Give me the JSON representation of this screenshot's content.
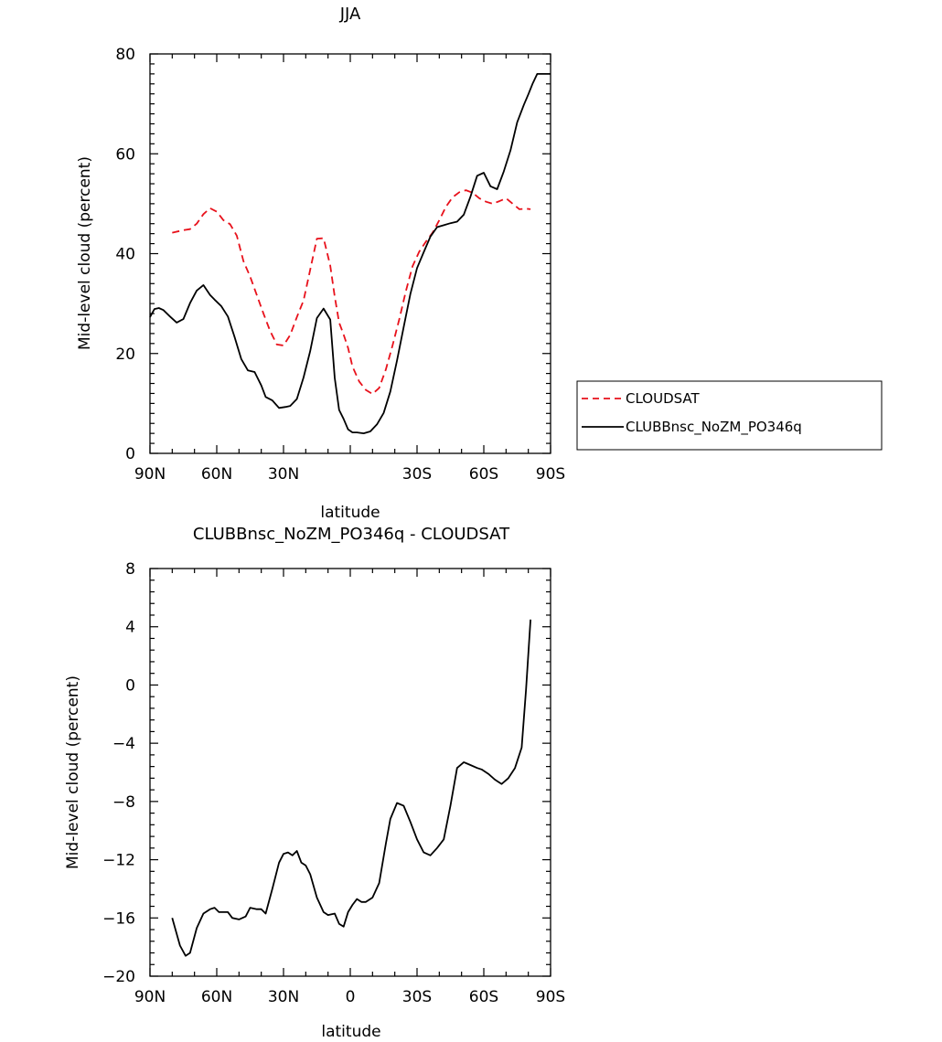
{
  "chart_data": [
    {
      "type": "line",
      "title": "JJA",
      "xlabel": "latitude",
      "ylabel": "Mid-level cloud (percent)",
      "xlim": [
        90,
        -90
      ],
      "ylim": [
        0,
        80
      ],
      "x_ticks": [
        90,
        60,
        30,
        0,
        -30,
        -60,
        -90
      ],
      "x_tick_labels": [
        "90N",
        "60N",
        "30N",
        "",
        "30S",
        "60S",
        "90S"
      ],
      "y_ticks": [
        0,
        20,
        40,
        60,
        80
      ],
      "y_tick_labels": [
        "0",
        "20",
        "40",
        "60",
        "80"
      ],
      "legend": {
        "placement": "right"
      },
      "series": [
        {
          "name": "CLOUDSAT",
          "color": "#e8111b",
          "dash": "dashed",
          "x": [
            80,
            75,
            72,
            69,
            66,
            63,
            60,
            57,
            54,
            51,
            48,
            45,
            42,
            39,
            36,
            33,
            30,
            27,
            24,
            21,
            18,
            15,
            12,
            9,
            7,
            5,
            3,
            1,
            -1,
            -4,
            -7,
            -10,
            -13,
            -16,
            -19,
            -22,
            -25,
            -28,
            -31,
            -34,
            -37,
            -40,
            -43,
            -46,
            -49,
            -52,
            -55,
            -58,
            -61,
            -64,
            -67,
            -70,
            -73,
            -76,
            -79,
            -81
          ],
          "y": [
            44.2,
            44.7,
            44.9,
            46.0,
            47.9,
            49.1,
            48.4,
            46.7,
            45.9,
            43.6,
            38.5,
            35.4,
            31.7,
            28.0,
            24.5,
            21.8,
            21.6,
            23.7,
            27.3,
            30.6,
            36.8,
            43.0,
            43.1,
            37.6,
            31.4,
            26.2,
            23.8,
            21.1,
            17.4,
            14.4,
            12.7,
            11.9,
            13.1,
            16.8,
            21.6,
            26.8,
            32.5,
            37.5,
            40.4,
            42.4,
            44.2,
            46.7,
            49.4,
            51.3,
            52.3,
            52.7,
            52.2,
            51.1,
            50.4,
            50.0,
            50.5,
            51.1,
            50.0,
            48.9,
            49.0,
            48.9
          ]
        },
        {
          "name": "CLUBBnsc_NoZM_PO346q",
          "color": "#000000",
          "dash": "solid",
          "x": [
            90,
            88,
            86,
            84,
            81,
            78,
            75,
            72,
            69,
            66,
            63,
            61,
            58,
            55,
            52,
            49,
            46,
            43,
            40,
            38,
            35,
            32,
            29,
            27,
            24,
            21,
            18,
            15,
            12,
            9,
            7,
            5,
            3,
            1,
            -1,
            -3,
            -6,
            -9,
            -12,
            -15,
            -18,
            -21,
            -24,
            -27,
            -30,
            -33,
            -36,
            -39,
            -42,
            -45,
            -48,
            -51,
            -54,
            -57,
            -60,
            -63,
            -66,
            -69,
            -72,
            -75,
            -78,
            -80,
            -82,
            -84,
            -86,
            -88,
            -90
          ],
          "y": [
            27.3,
            28.9,
            29.1,
            28.7,
            27.4,
            26.2,
            26.9,
            30.1,
            32.6,
            33.7,
            31.7,
            30.8,
            29.5,
            27.4,
            23.3,
            18.9,
            16.6,
            16.3,
            13.6,
            11.3,
            10.6,
            9.1,
            9.3,
            9.5,
            10.9,
            15.2,
            20.5,
            27.1,
            29.0,
            26.8,
            15.1,
            8.7,
            6.9,
            4.8,
            4.2,
            4.2,
            4.0,
            4.4,
            5.8,
            8.1,
            12.4,
            18.6,
            25.3,
            31.9,
            37.1,
            40.3,
            43.4,
            45.3,
            45.7,
            46.1,
            46.4,
            47.8,
            51.4,
            55.6,
            56.2,
            53.5,
            52.9,
            56.5,
            60.7,
            66.3,
            69.8,
            71.9,
            74.1,
            76.0,
            76.0,
            76.0,
            76.0
          ]
        }
      ]
    },
    {
      "type": "line",
      "title": "CLUBBnsc_NoZM_PO346q - CLOUDSAT",
      "xlabel": "latitude",
      "ylabel": "Mid-level cloud (percent)",
      "xlim": [
        90,
        -90
      ],
      "ylim": [
        -20,
        8
      ],
      "x_ticks": [
        90,
        60,
        30,
        0,
        -30,
        -60,
        -90
      ],
      "x_tick_labels": [
        "90N",
        "60N",
        "30N",
        "0",
        "30S",
        "60S",
        "90S"
      ],
      "y_ticks": [
        -20,
        -16,
        -12,
        -8,
        -4,
        0,
        4,
        8
      ],
      "y_tick_labels": [
        "−20",
        "−16",
        "−12",
        "−8",
        "−4",
        "0",
        "4",
        "8"
      ],
      "series": [
        {
          "color": "#000000",
          "dash": "solid",
          "x": [
            80,
            76.5,
            74,
            72,
            69,
            66,
            63,
            61,
            59,
            57,
            55,
            53,
            50,
            47,
            45,
            42,
            40,
            38,
            35,
            32,
            30,
            28,
            26,
            24,
            22,
            20,
            18,
            15,
            12,
            10,
            7,
            5,
            3,
            1,
            -1,
            -3,
            -5,
            -7,
            -10,
            -13,
            -16,
            -18,
            -21,
            -24,
            -27,
            -30,
            -33,
            -36,
            -39,
            -42,
            -45,
            -48,
            -51,
            -54,
            -57,
            -59,
            -62,
            -65,
            -68,
            -71,
            -74,
            -77,
            -79,
            -81
          ],
          "y": [
            -16.0,
            -17.9,
            -18.6,
            -18.4,
            -16.7,
            -15.7,
            -15.4,
            -15.3,
            -15.6,
            -15.6,
            -15.6,
            -16.0,
            -16.1,
            -15.9,
            -15.3,
            -15.4,
            -15.4,
            -15.7,
            -14.0,
            -12.2,
            -11.6,
            -11.5,
            -11.7,
            -11.4,
            -12.2,
            -12.4,
            -13.0,
            -14.6,
            -15.6,
            -15.8,
            -15.7,
            -16.4,
            -16.6,
            -15.6,
            -15.1,
            -14.7,
            -14.9,
            -14.9,
            -14.6,
            -13.6,
            -10.9,
            -9.2,
            -8.1,
            -8.3,
            -9.4,
            -10.6,
            -11.5,
            -11.7,
            -11.2,
            -10.6,
            -8.3,
            -5.7,
            -5.3,
            -5.5,
            -5.7,
            -5.8,
            -6.1,
            -6.5,
            -6.8,
            -6.4,
            -5.7,
            -4.3,
            -0.3,
            4.5
          ]
        }
      ]
    }
  ]
}
